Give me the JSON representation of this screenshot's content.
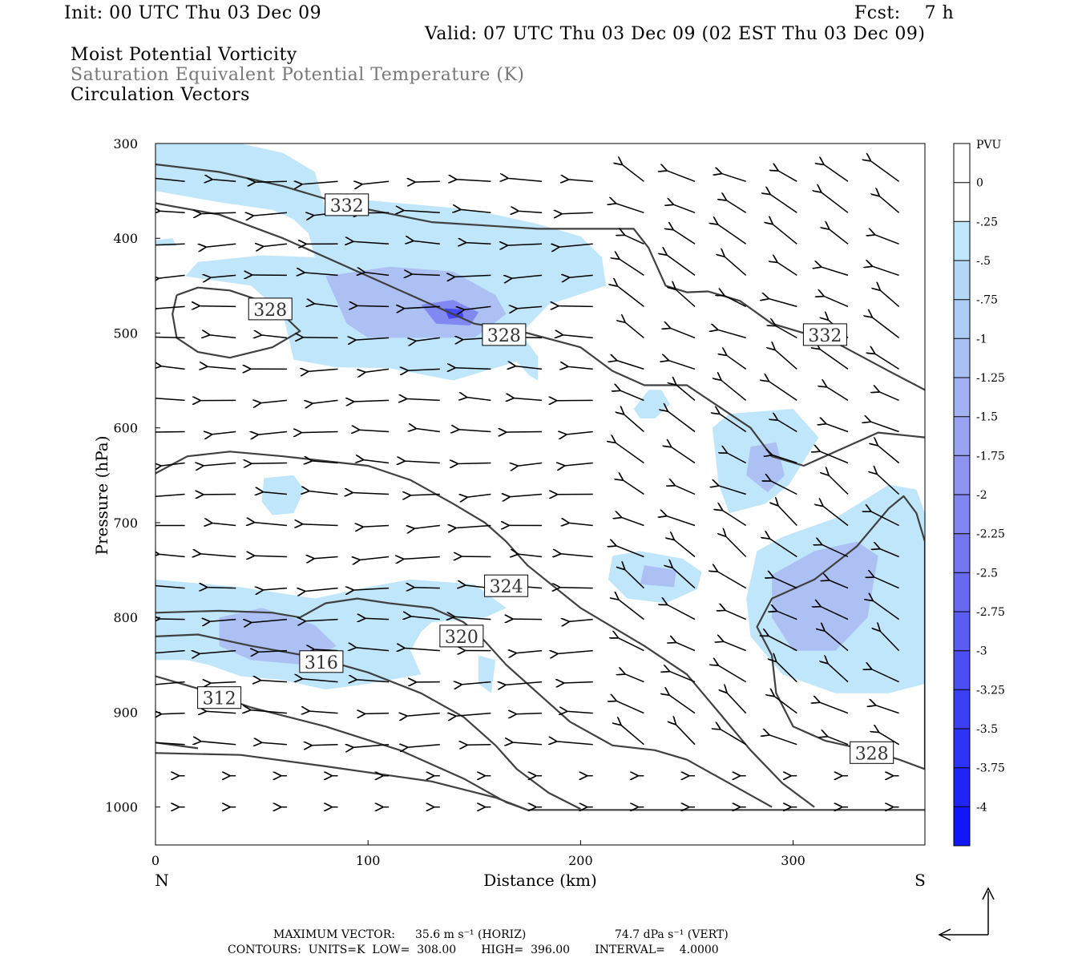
{
  "header": {
    "init": "Init: 00 UTC Thu 03 Dec 09",
    "fcst": "Fcst:    7 h",
    "valid": "Valid: 07 UTC Thu 03 Dec 09 (02 EST Thu 03 Dec 09)",
    "fields": [
      "Moist Potential Vorticity",
      "Saturation Equivalent Potential Temperature (K)",
      "Circulation Vectors"
    ]
  },
  "footer": {
    "max_vector_label": "MAXIMUM VECTOR:",
    "max_vector_horiz": "35.6 m s⁻¹ (HORIZ)",
    "max_vector_vert": "74.7 dPa s⁻¹ (VERT)",
    "contours": "CONTOURS:  UNITS=K  LOW=  308.00       HIGH=  396.00       INTERVAL=    4.0000"
  },
  "colors": {
    "shade_light": "#bfe6fa",
    "shade_mid": "#a8b8f2",
    "shade_dark": "#7a7ef0",
    "shade_core": "#3a3ef2",
    "contour": "#404040"
  },
  "chart_data": {
    "type": "heatmap",
    "xlabel": "Distance (km)",
    "ylabel": "Pressure (hPa)",
    "xlim": [
      0,
      362
    ],
    "ylim": [
      1040,
      300
    ],
    "x_ticks": [
      0,
      100,
      200,
      300
    ],
    "y_ticks": [
      300,
      400,
      500,
      600,
      700,
      800,
      900,
      1000
    ],
    "x_end_labels": [
      "N",
      "S"
    ],
    "colorbar": {
      "unit": "PVU",
      "levels": [
        "0",
        "-.25",
        "-.5",
        "-.75",
        "-1",
        "-1.25",
        "-1.5",
        "-1.75",
        "-2",
        "-2.25",
        "-2.5",
        "-2.75",
        "-3",
        "-3.25",
        "-3.5",
        "-3.75",
        "-4"
      ],
      "colors": [
        "#ffffff",
        "#ffffff",
        "#bfe6fa",
        "#b4d7f6",
        "#aecdf5",
        "#a8c0f3",
        "#a1b1f2",
        "#98a3f1",
        "#8d95f0",
        "#8186f0",
        "#7477f1",
        "#676af1",
        "#5a5cf2",
        "#4b4ef3",
        "#3c40f4",
        "#2e32f5",
        "#2024f7",
        "#1216fa"
      ]
    },
    "contour_labels": [
      {
        "value": "332",
        "x": 90,
        "p": 365
      },
      {
        "value": "328",
        "x": 54,
        "p": 475
      },
      {
        "value": "328",
        "x": 164,
        "p": 502
      },
      {
        "value": "332",
        "x": 315,
        "p": 502
      },
      {
        "value": "324",
        "x": 165,
        "p": 767
      },
      {
        "value": "320",
        "x": 144,
        "p": 820
      },
      {
        "value": "316",
        "x": 78,
        "p": 847
      },
      {
        "value": "312",
        "x": 30,
        "p": 885
      },
      {
        "value": "328",
        "x": 337,
        "p": 943
      }
    ],
    "theta_e_contours": [
      {
        "value": 332,
        "points": [
          [
            0,
            322
          ],
          [
            30,
            330
          ],
          [
            60,
            345
          ],
          [
            90,
            365
          ],
          [
            130,
            383
          ],
          [
            180,
            390
          ],
          [
            225,
            390
          ],
          [
            232,
            410
          ],
          [
            240,
            450
          ],
          [
            250,
            457
          ],
          [
            260,
            456
          ],
          [
            275,
            466
          ],
          [
            290,
            490
          ],
          [
            320,
            510
          ],
          [
            345,
            540
          ],
          [
            362,
            560
          ]
        ]
      },
      {
        "value": 328,
        "points": [
          [
            0,
            363
          ],
          [
            30,
            375
          ],
          [
            60,
            400
          ],
          [
            100,
            440
          ],
          [
            130,
            470
          ],
          [
            150,
            490
          ],
          [
            175,
            500
          ],
          [
            200,
            515
          ],
          [
            215,
            540
          ],
          [
            230,
            555
          ],
          [
            250,
            555
          ],
          [
            268,
            582
          ],
          [
            280,
            600
          ],
          [
            290,
            630
          ],
          [
            305,
            640
          ],
          [
            320,
            625
          ],
          [
            340,
            605
          ],
          [
            362,
            610
          ]
        ]
      },
      {
        "value": 328,
        "points": [
          [
            10,
            460
          ],
          [
            20,
            452
          ],
          [
            35,
            455
          ],
          [
            55,
            470
          ],
          [
            68,
            498
          ],
          [
            55,
            515
          ],
          [
            35,
            526
          ],
          [
            20,
            520
          ],
          [
            10,
            505
          ],
          [
            8,
            480
          ],
          [
            10,
            460
          ]
        ]
      },
      {
        "value": 328,
        "points": [
          [
            290,
            840
          ],
          [
            283,
            810
          ],
          [
            290,
            780
          ],
          [
            310,
            760
          ],
          [
            330,
            725
          ],
          [
            345,
            685
          ],
          [
            352,
            672
          ],
          [
            358,
            690
          ],
          [
            362,
            720
          ],
          [
            362,
            960
          ],
          [
            350,
            950
          ],
          [
            335,
            940
          ],
          [
            315,
            930
          ],
          [
            300,
            915
          ],
          [
            292,
            880
          ],
          [
            290,
            840
          ]
        ]
      },
      {
        "value": 324,
        "points": [
          [
            0,
            648
          ],
          [
            15,
            630
          ],
          [
            35,
            625
          ],
          [
            60,
            630
          ],
          [
            80,
            635
          ],
          [
            100,
            640
          ],
          [
            120,
            655
          ],
          [
            140,
            680
          ],
          [
            155,
            700
          ],
          [
            165,
            720
          ],
          [
            175,
            745
          ],
          [
            200,
            790
          ],
          [
            230,
            830
          ],
          [
            250,
            860
          ],
          [
            265,
            900
          ],
          [
            280,
            940
          ],
          [
            295,
            975
          ],
          [
            310,
            1000
          ]
        ]
      },
      {
        "value": 320,
        "points": [
          [
            0,
            795
          ],
          [
            30,
            793
          ],
          [
            55,
            795
          ],
          [
            68,
            800
          ],
          [
            80,
            785
          ],
          [
            95,
            780
          ],
          [
            110,
            785
          ],
          [
            130,
            790
          ],
          [
            145,
            805
          ],
          [
            155,
            825
          ],
          [
            165,
            850
          ],
          [
            180,
            880
          ],
          [
            195,
            910
          ],
          [
            215,
            935
          ],
          [
            235,
            940
          ],
          [
            250,
            950
          ],
          [
            270,
            975
          ],
          [
            290,
            1000
          ]
        ]
      },
      {
        "value": 316,
        "points": [
          [
            0,
            820
          ],
          [
            20,
            818
          ],
          [
            45,
            830
          ],
          [
            75,
            842
          ],
          [
            100,
            858
          ],
          [
            125,
            880
          ],
          [
            145,
            905
          ],
          [
            160,
            935
          ],
          [
            170,
            960
          ],
          [
            185,
            985
          ],
          [
            200,
            1002
          ]
        ]
      },
      {
        "value": 312,
        "points": [
          [
            0,
            862
          ],
          [
            20,
            875
          ],
          [
            45,
            895
          ],
          [
            80,
            915
          ],
          [
            115,
            940
          ],
          [
            145,
            970
          ],
          [
            165,
            995
          ],
          [
            175,
            1003
          ]
        ]
      },
      {
        "value": 308,
        "points": [
          [
            0,
            943
          ],
          [
            40,
            945
          ],
          [
            80,
            957
          ],
          [
            130,
            973
          ],
          [
            160,
            990
          ],
          [
            175,
            1003
          ],
          [
            362,
            1003
          ]
        ]
      },
      {
        "value": 308,
        "points": [
          [
            0,
            932
          ],
          [
            20,
            938
          ]
        ]
      }
    ],
    "mpv_regions": [
      {
        "level": -0.25,
        "points": [
          [
            0,
            300
          ],
          [
            40,
            300
          ],
          [
            60,
            310
          ],
          [
            75,
            330
          ],
          [
            80,
            370
          ],
          [
            100,
            360
          ],
          [
            140,
            368
          ],
          [
            160,
            375
          ],
          [
            180,
            385
          ],
          [
            200,
            398
          ],
          [
            210,
            420
          ],
          [
            212,
            450
          ],
          [
            185,
            470
          ],
          [
            172,
            500
          ],
          [
            180,
            525
          ],
          [
            180,
            550
          ],
          [
            176,
            545
          ],
          [
            170,
            530
          ],
          [
            140,
            550
          ],
          [
            110,
            537
          ],
          [
            85,
            536
          ],
          [
            65,
            528
          ],
          [
            60,
            480
          ],
          [
            45,
            450
          ],
          [
            14,
            440
          ],
          [
            20,
            425
          ],
          [
            50,
            418
          ],
          [
            75,
            420
          ],
          [
            72,
            395
          ],
          [
            65,
            380
          ],
          [
            55,
            370
          ],
          [
            30,
            362
          ],
          [
            0,
            350
          ]
        ]
      },
      {
        "level": -0.25,
        "points": [
          [
            0,
            402
          ],
          [
            8,
            400
          ],
          [
            10,
            408
          ],
          [
            0,
            408
          ]
        ]
      },
      {
        "level": -0.25,
        "points": [
          [
            51,
            653
          ],
          [
            65,
            650
          ],
          [
            70,
            665
          ],
          [
            65,
            690
          ],
          [
            55,
            692
          ],
          [
            50,
            678
          ]
        ]
      },
      {
        "level": -0.25,
        "points": [
          [
            0,
            760
          ],
          [
            40,
            768
          ],
          [
            75,
            780
          ],
          [
            100,
            768
          ],
          [
            120,
            760
          ],
          [
            150,
            765
          ],
          [
            165,
            790
          ],
          [
            155,
            800
          ],
          [
            130,
            805
          ],
          [
            125,
            815
          ],
          [
            120,
            835
          ],
          [
            125,
            860
          ],
          [
            100,
            870
          ],
          [
            80,
            876
          ],
          [
            60,
            866
          ],
          [
            40,
            862
          ],
          [
            25,
            850
          ],
          [
            15,
            845
          ],
          [
            0,
            845
          ]
        ]
      },
      {
        "level": -0.25,
        "points": [
          [
            152,
            840
          ],
          [
            160,
            845
          ],
          [
            158,
            880
          ],
          [
            152,
            870
          ]
        ]
      },
      {
        "level": -0.25,
        "points": [
          [
            225,
            580
          ],
          [
            232,
            560
          ],
          [
            238,
            560
          ],
          [
            242,
            575
          ],
          [
            235,
            590
          ],
          [
            228,
            590
          ]
        ]
      },
      {
        "level": -0.25,
        "points": [
          [
            215,
            735
          ],
          [
            228,
            730
          ],
          [
            248,
            738
          ],
          [
            257,
            752
          ],
          [
            255,
            770
          ],
          [
            240,
            785
          ],
          [
            222,
            780
          ],
          [
            213,
            760
          ]
        ]
      },
      {
        "level": -0.25,
        "points": [
          [
            270,
            585
          ],
          [
            300,
            580
          ],
          [
            312,
            610
          ],
          [
            298,
            660
          ],
          [
            287,
            680
          ],
          [
            270,
            690
          ],
          [
            265,
            660
          ],
          [
            262,
            600
          ]
        ]
      },
      {
        "level": -0.25,
        "points": [
          [
            283,
            730
          ],
          [
            295,
            715
          ],
          [
            320,
            695
          ],
          [
            345,
            660
          ],
          [
            358,
            665
          ],
          [
            362,
            690
          ],
          [
            362,
            870
          ],
          [
            345,
            880
          ],
          [
            320,
            880
          ],
          [
            295,
            860
          ],
          [
            280,
            820
          ],
          [
            278,
            780
          ]
        ]
      }
    ],
    "mpv_cores": [
      {
        "level": -1.0,
        "points": [
          [
            80,
            440
          ],
          [
            110,
            430
          ],
          [
            140,
            435
          ],
          [
            160,
            460
          ],
          [
            165,
            480
          ],
          [
            150,
            505
          ],
          [
            120,
            505
          ],
          [
            100,
            505
          ],
          [
            90,
            490
          ]
        ]
      },
      {
        "level": -1.0,
        "points": [
          [
            30,
            800
          ],
          [
            50,
            790
          ],
          [
            75,
            808
          ],
          [
            85,
            830
          ],
          [
            70,
            850
          ],
          [
            45,
            845
          ],
          [
            30,
            830
          ]
        ]
      },
      {
        "level": -1.0,
        "points": [
          [
            280,
            620
          ],
          [
            292,
            615
          ],
          [
            296,
            650
          ],
          [
            288,
            668
          ],
          [
            278,
            650
          ]
        ]
      },
      {
        "level": -1.0,
        "points": [
          [
            290,
            755
          ],
          [
            310,
            730
          ],
          [
            330,
            720
          ],
          [
            340,
            735
          ],
          [
            335,
            800
          ],
          [
            320,
            835
          ],
          [
            300,
            835
          ],
          [
            290,
            800
          ]
        ]
      },
      {
        "level": -1.0,
        "points": [
          [
            230,
            745
          ],
          [
            245,
            750
          ],
          [
            244,
            768
          ],
          [
            228,
            765
          ]
        ]
      },
      {
        "level": -2.0,
        "points": [
          [
            125,
            470
          ],
          [
            140,
            465
          ],
          [
            152,
            478
          ],
          [
            148,
            492
          ],
          [
            132,
            490
          ]
        ]
      },
      {
        "level": -3.5,
        "points": [
          [
            136,
            474
          ],
          [
            144,
            475
          ],
          [
            145,
            483
          ],
          [
            138,
            485
          ]
        ]
      }
    ]
  }
}
